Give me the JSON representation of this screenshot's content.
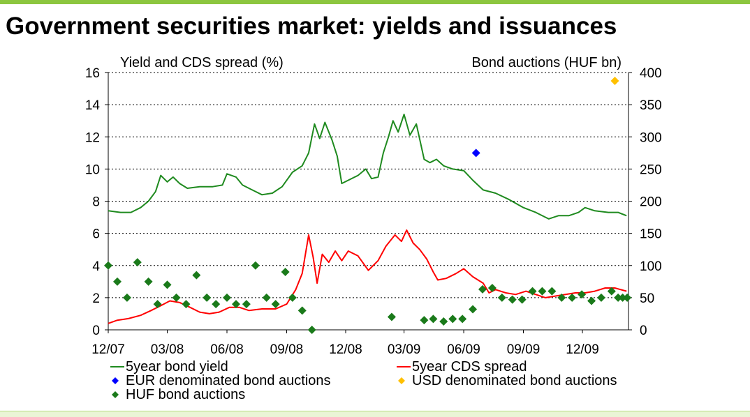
{
  "title": "Government securities market: yields and issuances",
  "colors": {
    "top_bar": "#8cc63f",
    "yield_line": "#1f8a1f",
    "cds_line": "#ff0000",
    "huf_marker": "#1a7a1a",
    "eur_marker": "#0000ff",
    "usd_marker": "#ffc000"
  },
  "chart_data": {
    "type": "line",
    "left_axis_label": "Yield and CDS spread (%)",
    "right_axis_label": "Bond auctions (HUF bn)",
    "left_ylim": [
      0,
      16
    ],
    "left_ticks": [
      "0",
      "2",
      "4",
      "6",
      "8",
      "10",
      "12",
      "14",
      "16"
    ],
    "right_ylim": [
      0,
      400
    ],
    "right_ticks": [
      "0",
      "50",
      "100",
      "150",
      "200",
      "250",
      "300",
      "350",
      "400"
    ],
    "x_range": [
      "2007-12-01",
      "2010-02-10"
    ],
    "x_ticks": [
      {
        "label": "12/07",
        "date": "2007-12-01"
      },
      {
        "label": "03/08",
        "date": "2008-03-01"
      },
      {
        "label": "06/08",
        "date": "2008-06-01"
      },
      {
        "label": "09/08",
        "date": "2008-09-01"
      },
      {
        "label": "12/08",
        "date": "2008-12-01"
      },
      {
        "label": "03/09",
        "date": "2009-03-01"
      },
      {
        "label": "06/09",
        "date": "2009-06-01"
      },
      {
        "label": "09/09",
        "date": "2009-09-01"
      },
      {
        "label": "12/09",
        "date": "2009-12-01"
      }
    ],
    "gridlines": "horizontal dotted",
    "legend_position": "bottom",
    "series": [
      {
        "name": "5year bond yield",
        "axis": "left",
        "type": "line",
        "points": [
          [
            "2007-12-01",
            7.4
          ],
          [
            "2007-12-20",
            7.3
          ],
          [
            "2008-01-05",
            7.3
          ],
          [
            "2008-01-20",
            7.6
          ],
          [
            "2008-02-01",
            8.0
          ],
          [
            "2008-02-12",
            8.6
          ],
          [
            "2008-02-20",
            9.6
          ],
          [
            "2008-03-01",
            9.2
          ],
          [
            "2008-03-10",
            9.5
          ],
          [
            "2008-03-20",
            9.1
          ],
          [
            "2008-04-01",
            8.8
          ],
          [
            "2008-04-20",
            8.9
          ],
          [
            "2008-05-10",
            8.9
          ],
          [
            "2008-05-25",
            9.0
          ],
          [
            "2008-06-01",
            9.7
          ],
          [
            "2008-06-15",
            9.5
          ],
          [
            "2008-06-25",
            9.0
          ],
          [
            "2008-07-10",
            8.7
          ],
          [
            "2008-07-25",
            8.4
          ],
          [
            "2008-08-10",
            8.5
          ],
          [
            "2008-08-25",
            8.9
          ],
          [
            "2008-09-10",
            9.8
          ],
          [
            "2008-09-25",
            10.2
          ],
          [
            "2008-10-05",
            11.0
          ],
          [
            "2008-10-14",
            12.8
          ],
          [
            "2008-10-22",
            11.9
          ],
          [
            "2008-10-30",
            12.9
          ],
          [
            "2008-11-10",
            11.8
          ],
          [
            "2008-11-18",
            10.8
          ],
          [
            "2008-11-25",
            9.1
          ],
          [
            "2008-12-05",
            9.3
          ],
          [
            "2008-12-20",
            9.6
          ],
          [
            "2009-01-01",
            10.0
          ],
          [
            "2009-01-10",
            9.4
          ],
          [
            "2009-01-20",
            9.5
          ],
          [
            "2009-01-28",
            11.0
          ],
          [
            "2009-02-05",
            12.0
          ],
          [
            "2009-02-12",
            13.0
          ],
          [
            "2009-02-20",
            12.3
          ],
          [
            "2009-03-01",
            13.4
          ],
          [
            "2009-03-10",
            12.1
          ],
          [
            "2009-03-20",
            12.8
          ],
          [
            "2009-04-01",
            10.6
          ],
          [
            "2009-04-10",
            10.4
          ],
          [
            "2009-04-20",
            10.6
          ],
          [
            "2009-05-01",
            10.2
          ],
          [
            "2009-05-15",
            10.0
          ],
          [
            "2009-06-01",
            9.9
          ],
          [
            "2009-06-15",
            9.3
          ],
          [
            "2009-07-01",
            8.7
          ],
          [
            "2009-07-20",
            8.5
          ],
          [
            "2009-08-10",
            8.1
          ],
          [
            "2009-09-01",
            7.6
          ],
          [
            "2009-09-20",
            7.3
          ],
          [
            "2009-10-10",
            6.9
          ],
          [
            "2009-10-25",
            7.1
          ],
          [
            "2009-11-10",
            7.1
          ],
          [
            "2009-11-25",
            7.3
          ],
          [
            "2009-12-05",
            7.6
          ],
          [
            "2009-12-20",
            7.4
          ],
          [
            "2010-01-10",
            7.3
          ],
          [
            "2010-01-25",
            7.3
          ],
          [
            "2010-02-07",
            7.1
          ]
        ]
      },
      {
        "name": "5year CDS spread",
        "axis": "left",
        "type": "line",
        "points": [
          [
            "2007-12-01",
            0.4
          ],
          [
            "2007-12-15",
            0.6
          ],
          [
            "2008-01-01",
            0.7
          ],
          [
            "2008-01-20",
            0.9
          ],
          [
            "2008-02-05",
            1.2
          ],
          [
            "2008-02-20",
            1.5
          ],
          [
            "2008-03-05",
            1.8
          ],
          [
            "2008-03-20",
            1.7
          ],
          [
            "2008-04-05",
            1.4
          ],
          [
            "2008-04-20",
            1.1
          ],
          [
            "2008-05-05",
            1.0
          ],
          [
            "2008-05-20",
            1.1
          ],
          [
            "2008-06-05",
            1.4
          ],
          [
            "2008-06-20",
            1.4
          ],
          [
            "2008-07-05",
            1.2
          ],
          [
            "2008-07-25",
            1.3
          ],
          [
            "2008-08-15",
            1.3
          ],
          [
            "2008-09-01",
            1.6
          ],
          [
            "2008-09-15",
            2.5
          ],
          [
            "2008-09-25",
            3.5
          ],
          [
            "2008-10-05",
            5.9
          ],
          [
            "2008-10-12",
            4.5
          ],
          [
            "2008-10-18",
            2.9
          ],
          [
            "2008-10-26",
            4.7
          ],
          [
            "2008-11-05",
            4.2
          ],
          [
            "2008-11-15",
            4.9
          ],
          [
            "2008-11-25",
            4.3
          ],
          [
            "2008-12-05",
            4.9
          ],
          [
            "2008-12-20",
            4.6
          ],
          [
            "2009-01-05",
            3.7
          ],
          [
            "2009-01-20",
            4.3
          ],
          [
            "2009-02-01",
            5.2
          ],
          [
            "2009-02-15",
            5.9
          ],
          [
            "2009-02-25",
            5.5
          ],
          [
            "2009-03-05",
            6.2
          ],
          [
            "2009-03-15",
            5.4
          ],
          [
            "2009-03-25",
            5.0
          ],
          [
            "2009-04-05",
            4.4
          ],
          [
            "2009-04-15",
            3.6
          ],
          [
            "2009-04-22",
            3.1
          ],
          [
            "2009-05-05",
            3.2
          ],
          [
            "2009-05-20",
            3.5
          ],
          [
            "2009-06-01",
            3.8
          ],
          [
            "2009-06-15",
            3.3
          ],
          [
            "2009-07-01",
            2.9
          ],
          [
            "2009-07-10",
            2.3
          ],
          [
            "2009-07-20",
            2.5
          ],
          [
            "2009-08-05",
            2.3
          ],
          [
            "2009-08-20",
            2.2
          ],
          [
            "2009-09-05",
            2.4
          ],
          [
            "2009-09-20",
            2.2
          ],
          [
            "2009-10-05",
            2.0
          ],
          [
            "2009-10-20",
            2.1
          ],
          [
            "2009-11-05",
            2.2
          ],
          [
            "2009-11-20",
            2.3
          ],
          [
            "2009-12-05",
            2.3
          ],
          [
            "2009-12-20",
            2.4
          ],
          [
            "2010-01-05",
            2.6
          ],
          [
            "2010-01-20",
            2.6
          ],
          [
            "2010-02-07",
            2.4
          ]
        ]
      },
      {
        "name": "EUR denominated bond auctions",
        "axis": "right",
        "type": "scatter",
        "points": [
          [
            "2009-06-20",
            275
          ]
        ]
      },
      {
        "name": "USD denominated bond auctions",
        "axis": "right",
        "type": "scatter",
        "points": [
          [
            "2010-01-20",
            387
          ]
        ]
      },
      {
        "name": "HUF bond auctions",
        "axis": "right",
        "type": "scatter",
        "points": [
          [
            "2007-12-01",
            100
          ],
          [
            "2007-12-15",
            75
          ],
          [
            "2007-12-30",
            50
          ],
          [
            "2008-01-15",
            105
          ],
          [
            "2008-02-01",
            75
          ],
          [
            "2008-02-15",
            40
          ],
          [
            "2008-03-01",
            70
          ],
          [
            "2008-03-15",
            50
          ],
          [
            "2008-03-30",
            40
          ],
          [
            "2008-04-15",
            85
          ],
          [
            "2008-05-01",
            50
          ],
          [
            "2008-05-15",
            40
          ],
          [
            "2008-06-01",
            50
          ],
          [
            "2008-06-15",
            40
          ],
          [
            "2008-07-01",
            40
          ],
          [
            "2008-07-15",
            100
          ],
          [
            "2008-08-01",
            50
          ],
          [
            "2008-08-15",
            40
          ],
          [
            "2008-08-30",
            90
          ],
          [
            "2008-09-10",
            50
          ],
          [
            "2008-09-25",
            30
          ],
          [
            "2008-10-10",
            0
          ],
          [
            "2009-02-10",
            20
          ],
          [
            "2009-04-01",
            15
          ],
          [
            "2009-04-15",
            17
          ],
          [
            "2009-05-01",
            13
          ],
          [
            "2009-05-15",
            17
          ],
          [
            "2009-05-30",
            17
          ],
          [
            "2009-06-15",
            32
          ],
          [
            "2009-06-30",
            63
          ],
          [
            "2009-07-15",
            65
          ],
          [
            "2009-07-30",
            50
          ],
          [
            "2009-08-15",
            47
          ],
          [
            "2009-08-30",
            47
          ],
          [
            "2009-09-15",
            60
          ],
          [
            "2009-09-30",
            60
          ],
          [
            "2009-10-15",
            60
          ],
          [
            "2009-10-30",
            50
          ],
          [
            "2009-11-15",
            50
          ],
          [
            "2009-11-30",
            55
          ],
          [
            "2009-12-15",
            45
          ],
          [
            "2009-12-30",
            50
          ],
          [
            "2010-01-15",
            60
          ],
          [
            "2010-01-25",
            50
          ],
          [
            "2010-02-01",
            50
          ],
          [
            "2010-02-08",
            50
          ]
        ]
      }
    ],
    "legend": [
      {
        "label": "5year bond yield",
        "marker": "line",
        "color": "#1f8a1f"
      },
      {
        "label": "5year CDS spread",
        "marker": "line",
        "color": "#ff0000"
      },
      {
        "label": "EUR denominated bond auctions",
        "marker": "diamond",
        "color": "#0000ff"
      },
      {
        "label": "USD denominated bond auctions",
        "marker": "diamond",
        "color": "#ffc000"
      },
      {
        "label": "HUF bond auctions",
        "marker": "diamond",
        "color": "#1a7a1a"
      }
    ]
  }
}
